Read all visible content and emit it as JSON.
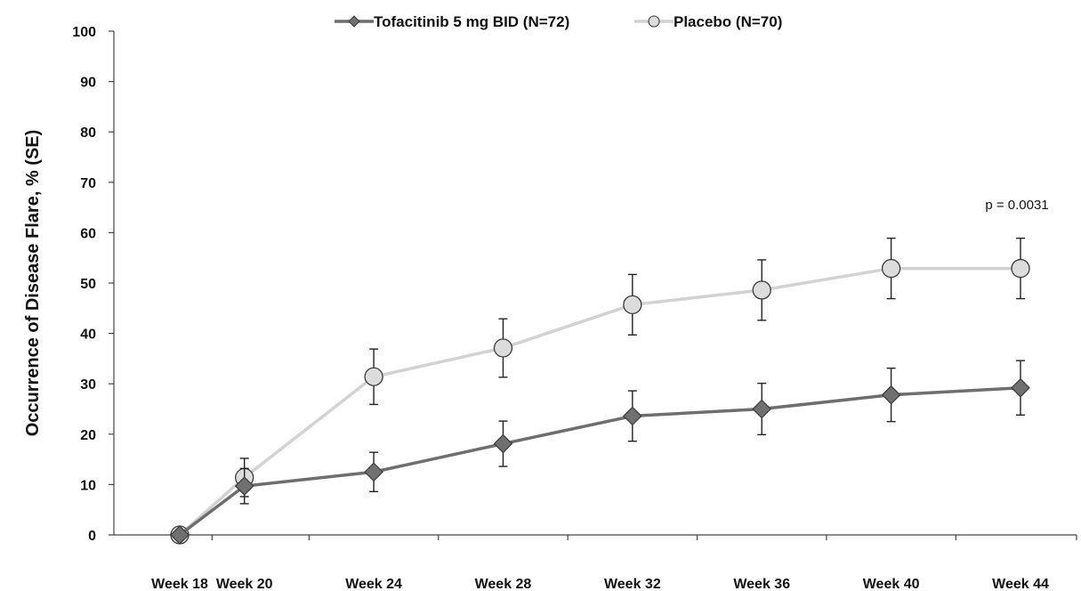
{
  "chart_data": {
    "type": "line",
    "title": "",
    "xlabel": "",
    "ylabel": "Occurrence of Disease Flare, % (SE)",
    "categories": [
      "Week 18",
      "Week 20",
      "Week 24",
      "Week 28",
      "Week 32",
      "Week 36",
      "Week 40",
      "Week 44"
    ],
    "x_weeks": [
      18,
      20,
      24,
      28,
      32,
      36,
      40,
      44
    ],
    "ylim": [
      0,
      100
    ],
    "yticks": [
      0,
      10,
      20,
      30,
      40,
      50,
      60,
      70,
      80,
      90,
      100
    ],
    "grid": false,
    "legend_position": "top",
    "series": [
      {
        "name": "Tofacitinib 5 mg BID (N=72)",
        "color": "#6e6e6e",
        "marker": "diamond",
        "values": [
          0,
          9.7,
          12.5,
          18.1,
          23.6,
          25.0,
          27.8,
          29.2
        ],
        "se": [
          0,
          3.5,
          3.9,
          4.5,
          5.0,
          5.1,
          5.3,
          5.4
        ]
      },
      {
        "name": "Placebo (N=70)",
        "color": "#d2d2d2",
        "marker": "circle",
        "values": [
          0,
          11.4,
          31.4,
          37.1,
          45.7,
          48.6,
          52.9,
          52.9
        ],
        "se": [
          0,
          3.8,
          5.5,
          5.8,
          6.0,
          6.0,
          6.0,
          6.0
        ]
      }
    ],
    "annotations": [
      {
        "text": "p = 0.0031"
      }
    ]
  }
}
